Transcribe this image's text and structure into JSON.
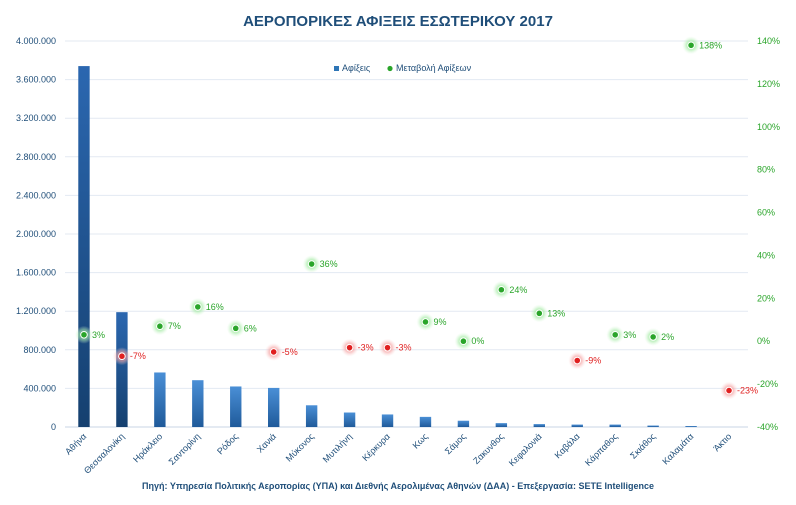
{
  "chart_data": {
    "type": "bar",
    "title": "ΑΕΡΟΠΟΡΙΚΕΣ ΑΦΙΞΕΙΣ ΕΣΩΤΕΡΙΚΟΥ 2017",
    "categories": [
      "Αθήνα",
      "Θεσσαλονίκη",
      "Ηράκλειο",
      "Σαντορίνη",
      "Ρόδος",
      "Χανιά",
      "Μύκονος",
      "Μυτιλήνη",
      "Κέρκυρα",
      "Κως",
      "Σάμος",
      "Ζακυνθος",
      "Κεφαλονιά",
      "Καβάλα",
      "Κάρπαθος",
      "Σκιάθος",
      "Καλαμάτα",
      "Άκτιο"
    ],
    "series": [
      {
        "name": "Αφίξεις",
        "type": "bar",
        "axis": "left",
        "color": "#2e75b6",
        "values": [
          3740000,
          1190000,
          565000,
          485000,
          420000,
          405000,
          225000,
          150000,
          130000,
          105000,
          65000,
          40000,
          30000,
          25000,
          25000,
          15000,
          10000,
          0
        ]
      },
      {
        "name": "Μεταβολή Αφίξεων",
        "type": "scatter",
        "axis": "right",
        "color": "#2aa52a",
        "negative_color": "#e02020",
        "values": [
          3,
          -7,
          7,
          16,
          6,
          -5,
          36,
          -3,
          -3,
          9,
          0,
          24,
          13,
          -9,
          3,
          2,
          138,
          -23
        ],
        "labels": [
          "3%",
          "-7%",
          "7%",
          "16%",
          "6%",
          "-5%",
          "36%",
          "-3%",
          "-3%",
          "9%",
          "0%",
          "24%",
          "13%",
          "-9%",
          "3%",
          "2%",
          "138%",
          "-23%"
        ]
      }
    ],
    "ylim": [
      0,
      4000000
    ],
    "y_ticks": [
      0,
      400000,
      800000,
      1200000,
      1600000,
      2000000,
      2400000,
      2800000,
      3200000,
      3600000,
      4000000
    ],
    "y_tick_labels": [
      "0",
      "400.000",
      "800.000",
      "1.200.000",
      "1.600.000",
      "2.000.000",
      "2.400.000",
      "2.800.000",
      "3.200.000",
      "3.600.000",
      "4.000.000"
    ],
    "y2lim": [
      -40,
      140
    ],
    "y2_ticks": [
      -40,
      -20,
      0,
      20,
      40,
      60,
      80,
      100,
      120,
      140
    ],
    "y2_tick_labels": [
      "-40%",
      "-20%",
      "0%",
      "20%",
      "40%",
      "60%",
      "80%",
      "100%",
      "120%",
      "140%"
    ],
    "legend": [
      "Αφίξεις",
      "Μεταβολή Αφίξεων"
    ],
    "legend_position": "top-center",
    "grid": true,
    "source_note": "Πηγή: Υπηρεσία Πολιτικής Αεροπορίας (ΥΠΑ)  και Διεθνής  Αερολιμένας Αθηνών (ΔΑΑ) - Επεξεργασία: SETE Intelligence"
  }
}
